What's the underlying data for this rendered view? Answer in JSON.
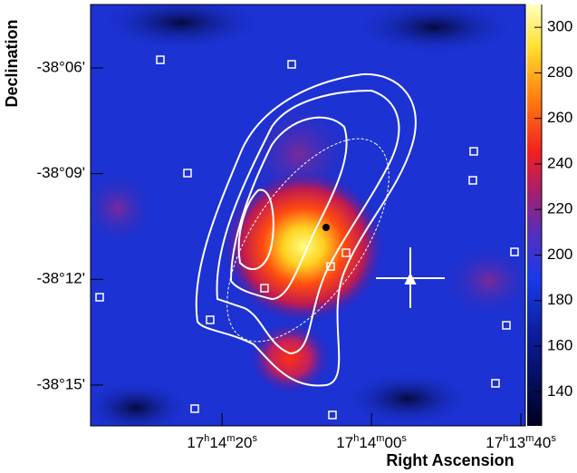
{
  "chart_data": {
    "type": "skymap",
    "xlabel": "Right Ascension",
    "ylabel": "Declination",
    "xlim": [
      62077.6,
      62019.4
    ],
    "xticks": [
      {
        "value": 62060,
        "label": "17h14m20s"
      },
      {
        "value": 62040,
        "label": "17h14m00s"
      },
      {
        "value": 62020,
        "label": "17h13m40s"
      }
    ],
    "ylim": [
      -2296.16,
      -2284.2
    ],
    "yticks": [
      {
        "value": -2286,
        "label": "-38°06'"
      },
      {
        "value": -2289,
        "label": "-38°09'"
      },
      {
        "value": -2292,
        "label": "-38°12'"
      },
      {
        "value": -2295,
        "label": "-38°15'"
      }
    ],
    "colorbar": {
      "lim": [
        125,
        310
      ],
      "ticks": [
        140,
        160,
        180,
        200,
        220,
        240,
        260,
        280,
        300
      ]
    }
  }
}
